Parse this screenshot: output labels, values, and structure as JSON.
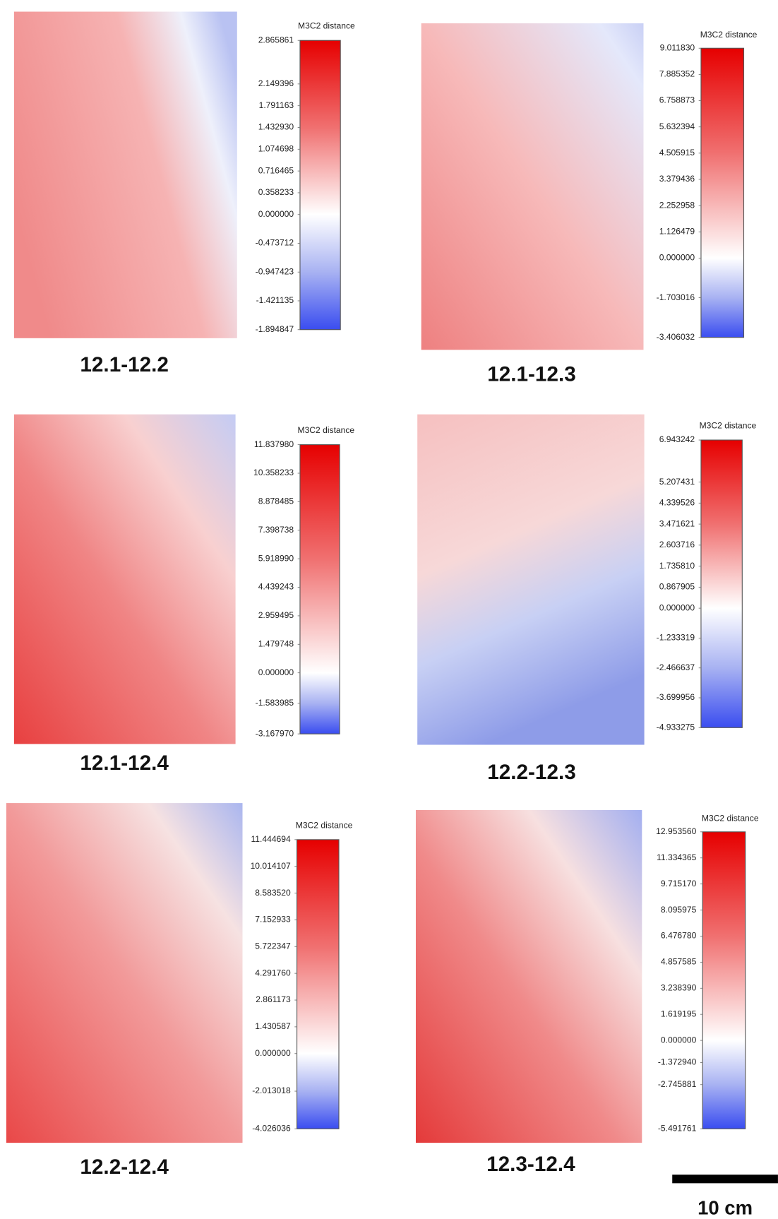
{
  "chart_data": [
    {
      "type": "colorbar",
      "title": "M3C2 distance",
      "caption": "12.1-12.2",
      "ylim": [
        -1.894847,
        2.865861
      ],
      "yticks": [
        2.865861,
        2.149396,
        1.791163,
        {
          "value": 1.43293,
          "label": "1.432930"
        },
        1.074698,
        0.716465,
        0.358233,
        {
          "value": 0,
          "label": "0.000000"
        },
        -0.473712,
        -0.947423,
        -1.421135,
        -1.894847
      ]
    },
    {
      "type": "colorbar",
      "title": "M3C2 distance",
      "caption": "12.1-12.3",
      "ylim": [
        -3.406032,
        9.01183
      ],
      "yticks": [
        {
          "value": 9.01183,
          "label": "9.011830"
        },
        7.885352,
        6.758873,
        5.632394,
        4.505915,
        3.379436,
        2.252958,
        1.126479,
        {
          "value": 0,
          "label": "0.000000"
        },
        -1.703016,
        -3.406032
      ]
    },
    {
      "type": "colorbar",
      "title": "M3C2 distance",
      "caption": "12.1-12.4",
      "ylim": [
        -3.16797,
        11.83798
      ],
      "yticks": [
        {
          "value": 11.83798,
          "label": "11.837980"
        },
        10.358233,
        8.878485,
        7.398738,
        {
          "value": 5.91899,
          "label": "5.918990"
        },
        4.439243,
        2.959495,
        1.479748,
        {
          "value": 0,
          "label": "0.000000"
        },
        -1.583985,
        {
          "value": -3.16797,
          "label": "-3.167970"
        }
      ]
    },
    {
      "type": "colorbar",
      "title": "M3C2 distance",
      "caption": "12.2-12.3",
      "ylim": [
        -4.933275,
        6.943242
      ],
      "yticks": [
        6.943242,
        5.207431,
        4.339526,
        3.471621,
        2.603716,
        {
          "value": 1.73581,
          "label": "1.735810"
        },
        0.867905,
        {
          "value": 0,
          "label": "0.000000"
        },
        -1.233319,
        -2.466637,
        -3.699956,
        -4.933275
      ]
    },
    {
      "type": "colorbar",
      "title": "M3C2 distance",
      "caption": "12.2-12.4",
      "ylim": [
        -4.026036,
        11.444694
      ],
      "yticks": [
        11.444694,
        10.014107,
        {
          "value": 8.58352,
          "label": "8.583520"
        },
        7.152933,
        5.722347,
        {
          "value": 4.29176,
          "label": "4.291760"
        },
        2.861173,
        1.430587,
        {
          "value": 0,
          "label": "0.000000"
        },
        -2.013018,
        -4.026036
      ]
    },
    {
      "type": "colorbar",
      "title": "M3C2 distance",
      "caption": "12.3-12.4",
      "ylim": [
        -5.491761,
        12.95356
      ],
      "yticks": [
        {
          "value": 12.95356,
          "label": "12.953560"
        },
        11.334365,
        {
          "value": 9.71517,
          "label": "9.715170"
        },
        8.095975,
        {
          "value": 6.47678,
          "label": "6.476780"
        },
        4.857585,
        {
          "value": 3.23839,
          "label": "3.238390"
        },
        1.619195,
        {
          "value": 0,
          "label": "0.000000"
        },
        {
          "value": -1.37294,
          "label": "-1.372940"
        },
        -2.745881,
        -5.491761
      ]
    }
  ],
  "scale_bar": {
    "label": "10 cm"
  }
}
